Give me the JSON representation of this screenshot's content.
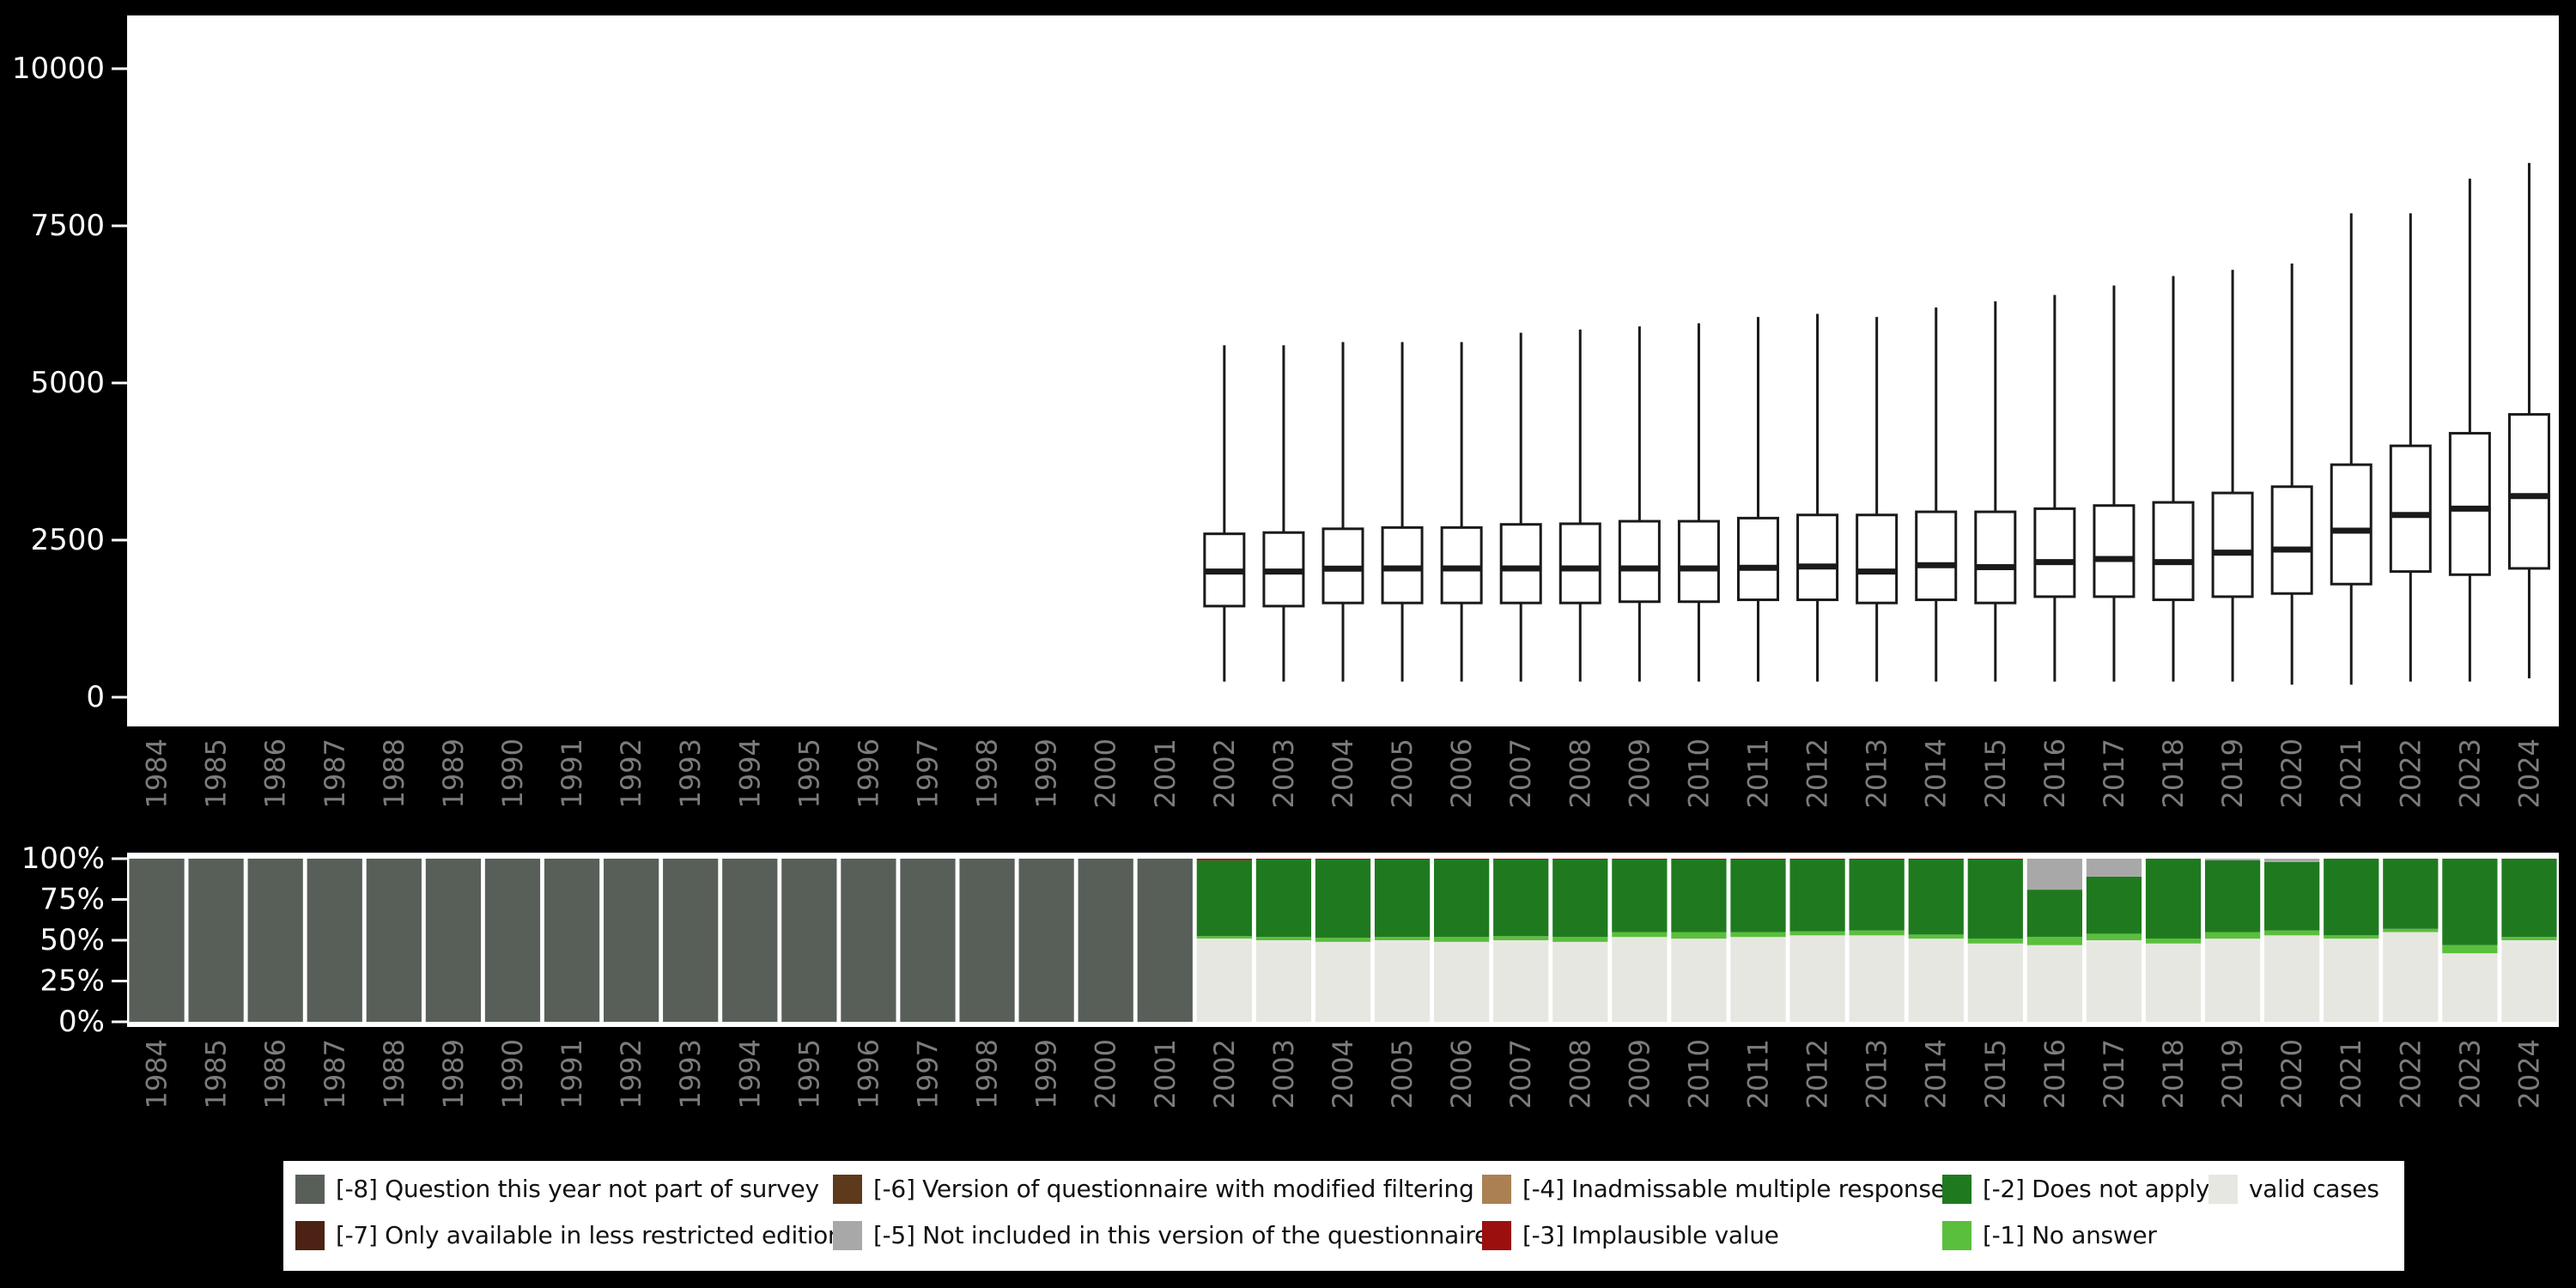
{
  "years": [
    1984,
    1985,
    1986,
    1987,
    1988,
    1989,
    1990,
    1991,
    1992,
    1993,
    1994,
    1995,
    1996,
    1997,
    1998,
    1999,
    2000,
    2001,
    2002,
    2003,
    2004,
    2005,
    2006,
    2007,
    2008,
    2009,
    2010,
    2011,
    2012,
    2013,
    2014,
    2015,
    2016,
    2017,
    2018,
    2019,
    2020,
    2021,
    2022,
    2023,
    2024
  ],
  "colors": {
    "-8": "#585f58",
    "-7": "#4b2213",
    "-6": "#5e3a1d",
    "-5": "#a8a8a8",
    "-4": "#ab8053",
    "-3": "#9c0f0f",
    "-2": "#1f7a1f",
    "-1": "#5abf3c",
    "valid": "#e7e7e1",
    "background": "#000000",
    "plot_background": "#ffffff",
    "axis_text": "#ffffff",
    "year_text": "#7c7c7c",
    "box_stroke": "#1a1a1a"
  },
  "chart_data": [
    {
      "type": "boxplot",
      "title": "",
      "xlabel": "",
      "ylabel": "",
      "ylim": [
        0,
        10000
      ],
      "yticks": [
        0,
        2500,
        5000,
        7500,
        10000
      ],
      "x_tick_labels_rotated": true,
      "grid": false,
      "boxes": [
        {
          "year": 2002,
          "whisker_low": 250,
          "q1": 1450,
          "median": 2000,
          "q3": 2600,
          "whisker_high": 5600
        },
        {
          "year": 2003,
          "whisker_low": 250,
          "q1": 1450,
          "median": 2000,
          "q3": 2620,
          "whisker_high": 5600
        },
        {
          "year": 2004,
          "whisker_low": 250,
          "q1": 1500,
          "median": 2045,
          "q3": 2680,
          "whisker_high": 5650
        },
        {
          "year": 2005,
          "whisker_low": 250,
          "q1": 1500,
          "median": 2050,
          "q3": 2700,
          "whisker_high": 5650
        },
        {
          "year": 2006,
          "whisker_low": 250,
          "q1": 1500,
          "median": 2050,
          "q3": 2700,
          "whisker_high": 5650
        },
        {
          "year": 2007,
          "whisker_low": 250,
          "q1": 1500,
          "median": 2050,
          "q3": 2750,
          "whisker_high": 5800
        },
        {
          "year": 2008,
          "whisker_low": 250,
          "q1": 1500,
          "median": 2050,
          "q3": 2760,
          "whisker_high": 5850
        },
        {
          "year": 2009,
          "whisker_low": 250,
          "q1": 1520,
          "median": 2050,
          "q3": 2800,
          "whisker_high": 5900
        },
        {
          "year": 2010,
          "whisker_low": 250,
          "q1": 1520,
          "median": 2050,
          "q3": 2800,
          "whisker_high": 5950
        },
        {
          "year": 2011,
          "whisker_low": 250,
          "q1": 1550,
          "median": 2060,
          "q3": 2850,
          "whisker_high": 6050
        },
        {
          "year": 2012,
          "whisker_low": 250,
          "q1": 1550,
          "median": 2080,
          "q3": 2900,
          "whisker_high": 6100
        },
        {
          "year": 2013,
          "whisker_low": 250,
          "q1": 1500,
          "median": 2000,
          "q3": 2900,
          "whisker_high": 6050
        },
        {
          "year": 2014,
          "whisker_low": 250,
          "q1": 1550,
          "median": 2100,
          "q3": 2950,
          "whisker_high": 6200
        },
        {
          "year": 2015,
          "whisker_low": 250,
          "q1": 1500,
          "median": 2070,
          "q3": 2950,
          "whisker_high": 6300
        },
        {
          "year": 2016,
          "whisker_low": 250,
          "q1": 1600,
          "median": 2150,
          "q3": 3000,
          "whisker_high": 6400
        },
        {
          "year": 2017,
          "whisker_low": 250,
          "q1": 1600,
          "median": 2200,
          "q3": 3050,
          "whisker_high": 6550
        },
        {
          "year": 2018,
          "whisker_low": 250,
          "q1": 1550,
          "median": 2150,
          "q3": 3100,
          "whisker_high": 6700
        },
        {
          "year": 2019,
          "whisker_low": 250,
          "q1": 1600,
          "median": 2300,
          "q3": 3250,
          "whisker_high": 6800
        },
        {
          "year": 2020,
          "whisker_low": 200,
          "q1": 1650,
          "median": 2350,
          "q3": 3350,
          "whisker_high": 6900
        },
        {
          "year": 2021,
          "whisker_low": 200,
          "q1": 1800,
          "median": 2650,
          "q3": 3700,
          "whisker_high": 7700
        },
        {
          "year": 2022,
          "whisker_low": 250,
          "q1": 2000,
          "median": 2900,
          "q3": 4000,
          "whisker_high": 7700
        },
        {
          "year": 2023,
          "whisker_low": 250,
          "q1": 1950,
          "median": 3000,
          "q3": 4200,
          "whisker_high": 8250
        },
        {
          "year": 2024,
          "whisker_low": 300,
          "q1": 2050,
          "median": 3200,
          "q3": 4500,
          "whisker_high": 8500
        }
      ]
    },
    {
      "type": "bar",
      "subtype": "stacked-percent",
      "title": "",
      "xlabel": "",
      "ylabel": "",
      "ytick_values": [
        0,
        25,
        50,
        75,
        100
      ],
      "ytick_labels": [
        "0%",
        "25%",
        "50%",
        "75%",
        "100%"
      ],
      "stack_order_bottom_to_top": [
        "valid",
        "-1",
        "-2",
        "-3",
        "-4",
        "-5",
        "-6",
        "-7",
        "-8"
      ],
      "bars": [
        {
          "year": 1984,
          "segments": {
            "-8": 100
          }
        },
        {
          "year": 1985,
          "segments": {
            "-8": 100
          }
        },
        {
          "year": 1986,
          "segments": {
            "-8": 100
          }
        },
        {
          "year": 1987,
          "segments": {
            "-8": 100
          }
        },
        {
          "year": 1988,
          "segments": {
            "-8": 100
          }
        },
        {
          "year": 1989,
          "segments": {
            "-8": 100
          }
        },
        {
          "year": 1990,
          "segments": {
            "-8": 100
          }
        },
        {
          "year": 1991,
          "segments": {
            "-8": 100
          }
        },
        {
          "year": 1992,
          "segments": {
            "-8": 100
          }
        },
        {
          "year": 1993,
          "segments": {
            "-8": 100
          }
        },
        {
          "year": 1994,
          "segments": {
            "-8": 100
          }
        },
        {
          "year": 1995,
          "segments": {
            "-8": 100
          }
        },
        {
          "year": 1996,
          "segments": {
            "-8": 100
          }
        },
        {
          "year": 1997,
          "segments": {
            "-8": 100
          }
        },
        {
          "year": 1998,
          "segments": {
            "-8": 100
          }
        },
        {
          "year": 1999,
          "segments": {
            "-8": 100
          }
        },
        {
          "year": 2000,
          "segments": {
            "-8": 100
          }
        },
        {
          "year": 2001,
          "segments": {
            "-8": 100
          }
        },
        {
          "year": 2002,
          "segments": {
            "valid": 51,
            "-1": 1.5,
            "-2": 46.5,
            "-3": 1
          }
        },
        {
          "year": 2003,
          "segments": {
            "valid": 50,
            "-1": 2,
            "-2": 47.5,
            "-3": 0.5
          }
        },
        {
          "year": 2004,
          "segments": {
            "valid": 49,
            "-1": 2.5,
            "-2": 48,
            "-3": 0.5
          }
        },
        {
          "year": 2005,
          "segments": {
            "valid": 50,
            "-1": 2,
            "-2": 47.5,
            "-3": 0.5
          }
        },
        {
          "year": 2006,
          "segments": {
            "valid": 49,
            "-1": 3,
            "-2": 47.5,
            "-3": 0.5
          }
        },
        {
          "year": 2007,
          "segments": {
            "valid": 50,
            "-1": 2.5,
            "-2": 47,
            "-3": 0.5
          }
        },
        {
          "year": 2008,
          "segments": {
            "valid": 49,
            "-1": 3,
            "-2": 47.5,
            "-3": 0.5
          }
        },
        {
          "year": 2009,
          "segments": {
            "valid": 52,
            "-1": 3,
            "-2": 44.5,
            "-3": 0.5
          }
        },
        {
          "year": 2010,
          "segments": {
            "valid": 51,
            "-1": 4,
            "-2": 44.5,
            "-3": 0.5
          }
        },
        {
          "year": 2011,
          "segments": {
            "valid": 52,
            "-1": 3,
            "-2": 44.5,
            "-3": 0.5
          }
        },
        {
          "year": 2012,
          "segments": {
            "valid": 53,
            "-1": 2.5,
            "-2": 44,
            "-3": 0.5
          }
        },
        {
          "year": 2013,
          "segments": {
            "valid": 53,
            "-1": 3,
            "-2": 43.5,
            "-3": 0.5
          }
        },
        {
          "year": 2014,
          "segments": {
            "valid": 51,
            "-1": 2.5,
            "-2": 46,
            "-3": 0.5
          }
        },
        {
          "year": 2015,
          "segments": {
            "valid": 48,
            "-1": 3,
            "-2": 48.5,
            "-3": 0.5
          }
        },
        {
          "year": 2016,
          "segments": {
            "valid": 47,
            "-1": 5,
            "-2": 29,
            "-5": 19
          }
        },
        {
          "year": 2017,
          "segments": {
            "valid": 50,
            "-1": 4,
            "-2": 35,
            "-5": 11
          }
        },
        {
          "year": 2018,
          "segments": {
            "valid": 48,
            "-1": 3,
            "-2": 49
          }
        },
        {
          "year": 2019,
          "segments": {
            "valid": 51,
            "-1": 4,
            "-2": 44,
            "-5": 1
          }
        },
        {
          "year": 2020,
          "segments": {
            "valid": 53,
            "-1": 3,
            "-2": 42,
            "-5": 2
          }
        },
        {
          "year": 2021,
          "segments": {
            "valid": 51,
            "-1": 2,
            "-2": 47
          }
        },
        {
          "year": 2022,
          "segments": {
            "valid": 55,
            "-1": 2,
            "-2": 43
          }
        },
        {
          "year": 2023,
          "segments": {
            "valid": 42,
            "-1": 5,
            "-2": 53
          }
        },
        {
          "year": 2024,
          "segments": {
            "valid": 50,
            "-1": 2,
            "-2": 48
          }
        }
      ]
    }
  ],
  "legend": {
    "items": [
      {
        "label": "[-8] Question this year not part of survey",
        "color_key": "-8",
        "row": 0,
        "col": 0
      },
      {
        "label": "[-7] Only available in less restricted edition",
        "color_key": "-7",
        "row": 1,
        "col": 0
      },
      {
        "label": "[-6] Version of questionnaire with modified filtering",
        "color_key": "-6",
        "row": 0,
        "col": 1
      },
      {
        "label": "[-5] Not included in this version of the questionnaire",
        "color_key": "-5",
        "row": 1,
        "col": 1
      },
      {
        "label": "[-4] Inadmissable multiple response",
        "color_key": "-4",
        "row": 0,
        "col": 2
      },
      {
        "label": "[-3] Implausible value",
        "color_key": "-3",
        "row": 1,
        "col": 2
      },
      {
        "label": "[-2] Does not apply",
        "color_key": "-2",
        "row": 0,
        "col": 3
      },
      {
        "label": "[-1] No answer",
        "color_key": "-1",
        "row": 1,
        "col": 3
      },
      {
        "label": "valid cases",
        "color_key": "valid",
        "row": 0,
        "col": 4
      }
    ]
  }
}
